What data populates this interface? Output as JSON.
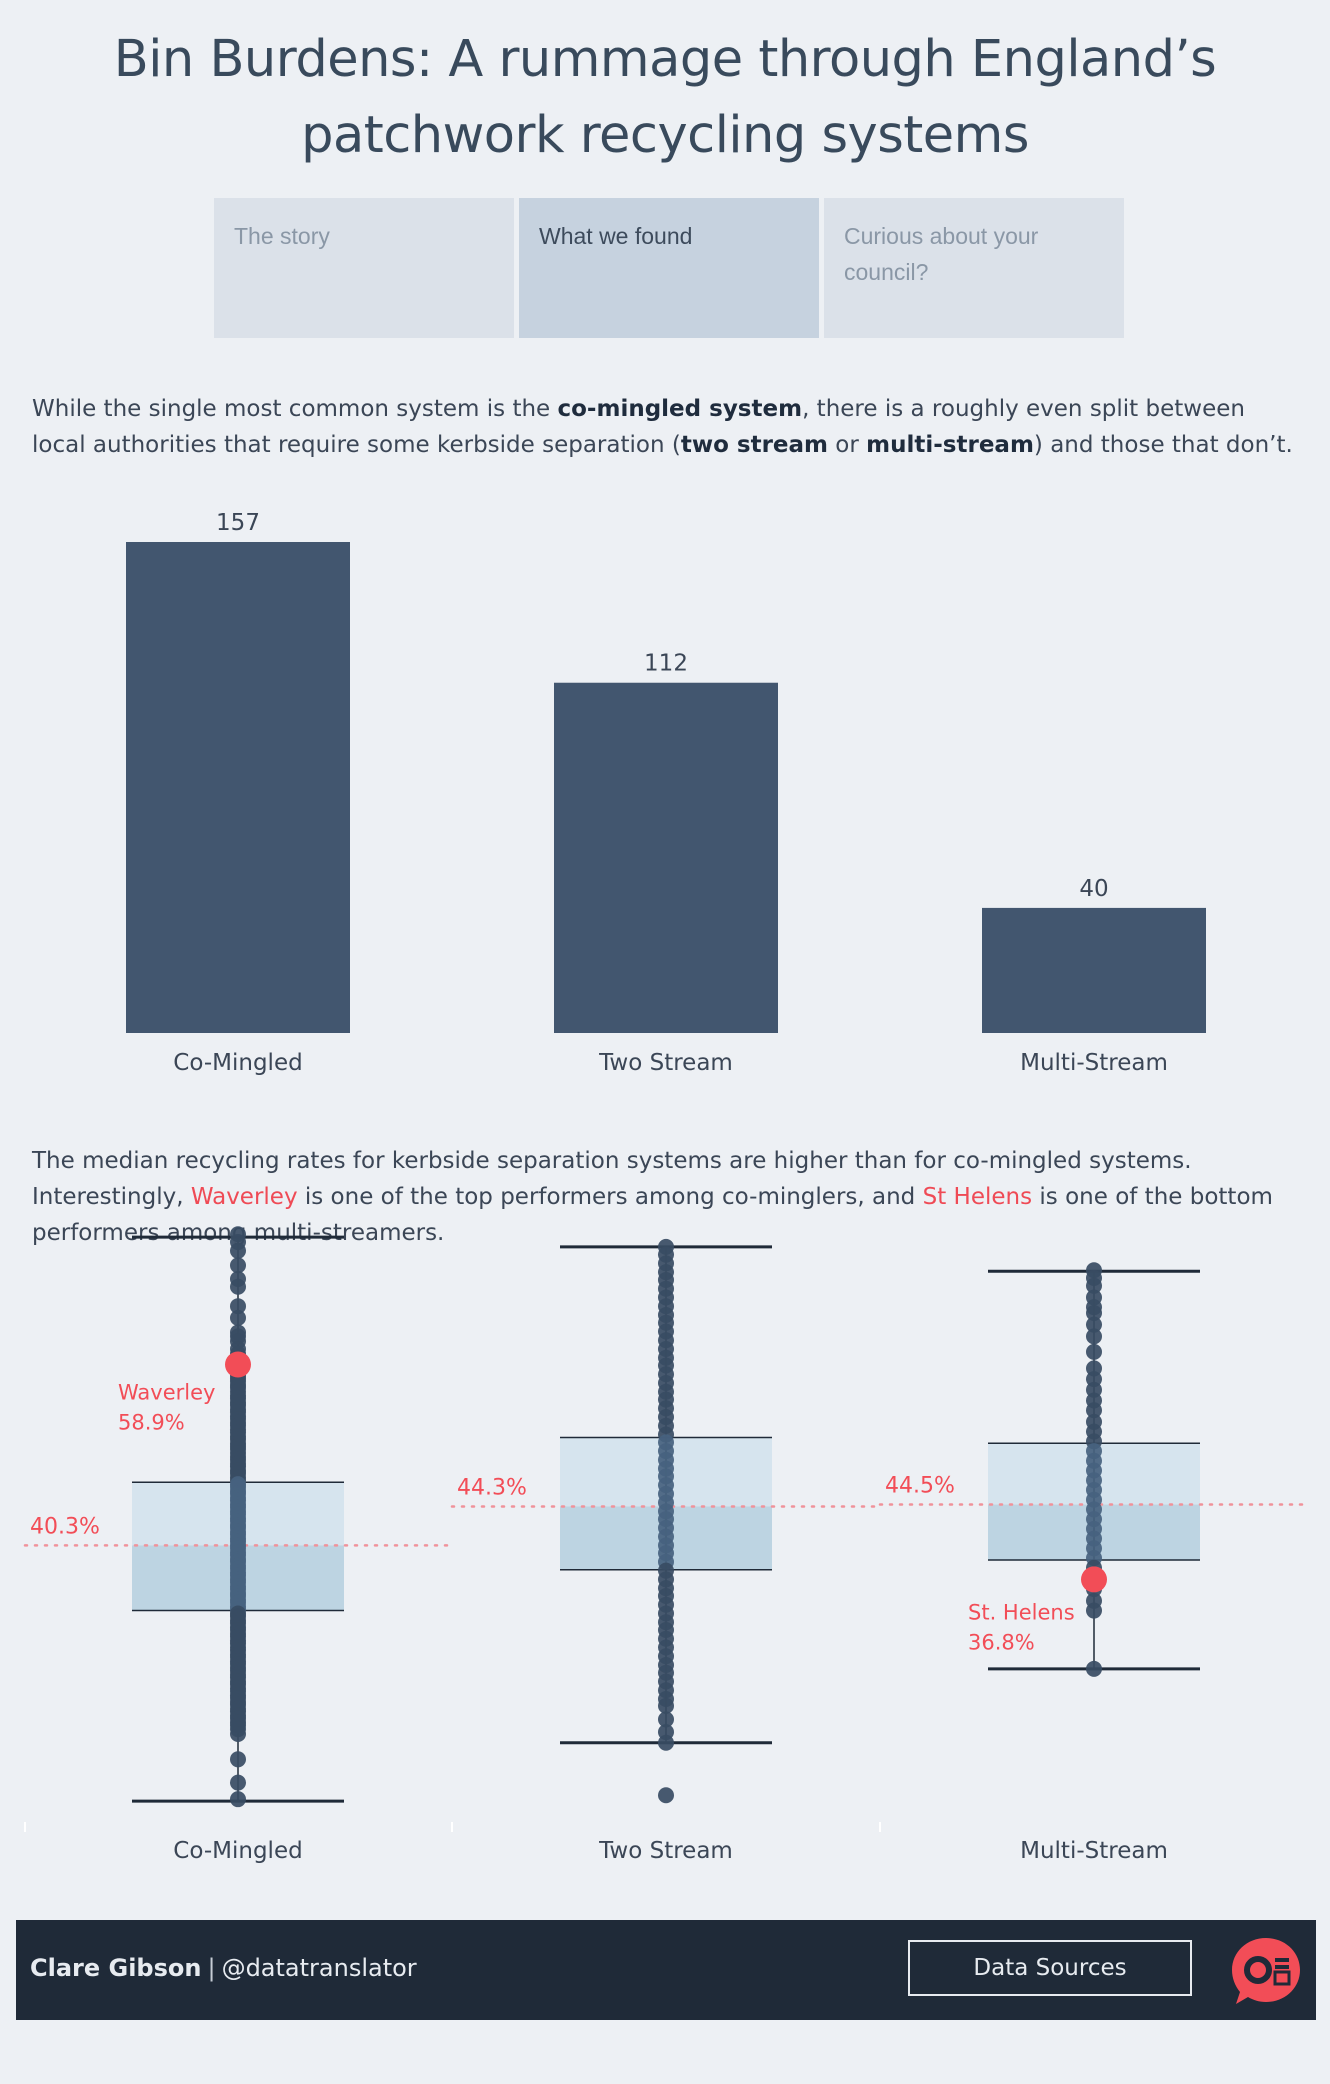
{
  "title_line1": "Bin Burdens: A rummage through England’s",
  "title_line2": "patchwork recycling systems",
  "tabs": [
    "The story",
    "What we found",
    "Curious about your council?"
  ],
  "para1": {
    "t1": "While the single most common system is the ",
    "b1": "co-mingled system",
    "t2": ", there is a roughly even split between local authorities that require some kerbside separation (",
    "b2": "two stream",
    "t3": " or ",
    "b3": "multi-stream",
    "t4": ") and those that don’t."
  },
  "para2": {
    "t1": "The median recycling rates for kerbside separation systems are higher than for co-mingled systems. Interestingly, ",
    "h1": "Waverley",
    "t2": " is one of the top performers among co-minglers, and ",
    "h2": "St Helens",
    "t3": " is one of the bottom performers among multi-streamers."
  },
  "colors": {
    "bar": "#42566f",
    "dot": "#384c63",
    "highlight": "#f24d57",
    "box_upper": "#d6e4ee",
    "box_lower": "#bdd4e2",
    "background": "#edf0f4",
    "footer": "#1f2a38"
  },
  "chart_data": [
    {
      "type": "bar",
      "categories": [
        "Co-Mingled",
        "Two Stream",
        "Multi-Stream"
      ],
      "values": [
        157,
        112,
        40
      ],
      "title": "",
      "xlabel": "",
      "ylabel": "",
      "ylim": [
        0,
        157
      ],
      "grid": false
    },
    {
      "type": "scatter",
      "subtype": "box-and-whisker",
      "categories": [
        "Co-Mingled",
        "Two Stream",
        "Multi-Stream"
      ],
      "ylim": [
        10,
        75
      ],
      "median_labels": [
        "40.3%",
        "44.3%",
        "44.5%"
      ],
      "boxes": [
        {
          "min": 14.0,
          "q1": 33.6,
          "median": 40.3,
          "q3": 46.8,
          "max": 72.0
        },
        {
          "min": 20.0,
          "q1": 37.8,
          "median": 44.3,
          "q3": 51.4,
          "max": 71.0
        },
        {
          "min": 27.6,
          "q1": 38.8,
          "median": 44.5,
          "q3": 50.8,
          "max": 68.5
        }
      ],
      "points": [
        [
          72.3,
          71.5,
          70.6,
          69.1,
          67.7,
          66.9,
          64.9,
          63.7,
          62.2,
          61.8,
          61.3,
          60.5,
          60.0,
          59.6,
          58.8,
          58.3,
          57.8,
          57.5,
          57.2,
          56.8,
          56.5,
          56.1,
          55.7,
          55.4,
          55.0,
          54.7,
          54.3,
          54.0,
          53.6,
          53.3,
          52.9,
          52.6,
          52.2,
          51.9,
          51.5,
          51.2,
          50.8,
          50.5,
          50.2,
          49.8,
          49.4,
          49.1,
          48.7,
          48.4,
          48.0,
          47.7,
          47.3,
          47.0,
          46.6,
          46.3,
          45.9,
          45.6,
          45.2,
          44.9,
          44.5,
          44.2,
          43.8,
          43.5,
          43.1,
          42.8,
          42.4,
          42.1,
          41.7,
          41.4,
          41.0,
          40.7,
          40.3,
          40.0,
          39.6,
          39.3,
          38.9,
          38.6,
          38.2,
          37.9,
          37.5,
          37.2,
          36.8,
          36.5,
          36.1,
          35.8,
          35.4,
          35.1,
          34.7,
          34.4,
          34.0,
          33.7,
          33.3,
          33.0,
          32.6,
          32.3,
          31.9,
          31.6,
          31.2,
          30.9,
          30.5,
          30.2,
          29.8,
          29.5,
          29.1,
          28.8,
          28.4,
          28.1,
          27.7,
          27.4,
          27.0,
          26.7,
          26.3,
          26.0,
          25.6,
          25.3,
          24.9,
          24.6,
          24.2,
          23.9,
          23.5,
          23.2,
          22.8,
          22.5,
          22.1,
          21.8,
          21.4,
          20.9,
          18.3,
          15.9,
          14.2
        ],
        [
          71.0,
          70.2,
          69.3,
          68.4,
          67.6,
          66.7,
          65.8,
          64.9,
          64.0,
          63.2,
          62.3,
          61.4,
          60.5,
          59.6,
          58.8,
          57.9,
          57.0,
          56.1,
          55.3,
          54.4,
          53.5,
          52.6,
          51.7,
          50.9,
          50.0,
          49.1,
          48.2,
          47.4,
          46.5,
          45.6,
          44.7,
          43.8,
          43.0,
          42.1,
          41.2,
          40.3,
          39.5,
          38.6,
          37.7,
          36.8,
          35.9,
          35.1,
          34.2,
          33.3,
          32.4,
          31.6,
          30.7,
          29.8,
          28.9,
          28.0,
          27.2,
          26.3,
          25.4,
          24.5,
          23.8,
          22.4,
          21.1,
          20.0,
          14.6
        ],
        [
          68.6,
          67.8,
          67.0,
          65.8,
          64.8,
          64.2,
          63.0,
          61.8,
          60.2,
          58.5,
          57.4,
          56.3,
          55.2,
          54.2,
          53.0,
          52.0,
          51.0,
          50.0,
          49.0,
          48.0,
          47.0,
          46.0,
          45.0,
          44.0,
          43.0,
          42.0,
          41.0,
          40.0,
          39.0,
          38.0,
          36.8,
          35.8,
          34.6,
          33.6,
          27.6
        ]
      ],
      "annotations": [
        {
          "category": "Co-Mingled",
          "name": "Waverley",
          "value": 58.9,
          "label": "58.9%"
        },
        {
          "category": "Multi-Stream",
          "name": "St. Helens",
          "value": 36.8,
          "label": "36.8%"
        }
      ]
    }
  ],
  "footer": {
    "author": "Clare Gibson",
    "separator": "|",
    "handle": "@datatranslator",
    "data_sources_label": "Data Sources",
    "logo_icon": "speech-bubble-logo-icon"
  }
}
